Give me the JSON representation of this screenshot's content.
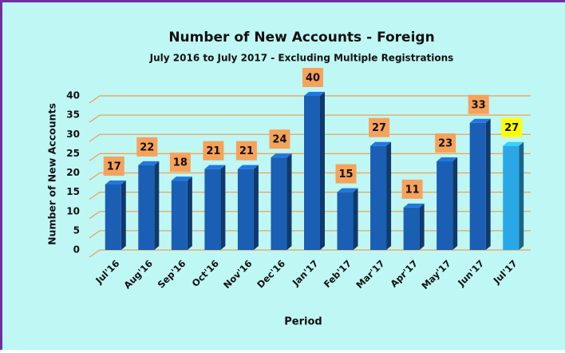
{
  "chart_data": {
    "type": "bar",
    "title": "Number of New Accounts - Foreign",
    "subtitle": "July 2016 to July 2017 - Excluding Multiple Registrations",
    "x_label": "Period",
    "y_label": "Number of New Accounts",
    "categories": [
      "Jul'16",
      "Aug'16",
      "Sep'16",
      "Oct'16",
      "Nov'16",
      "Dec'16",
      "Jan'17",
      "Feb'17",
      "Mar'17",
      "Apr'17",
      "May'17",
      "Jun'17",
      "Jul'17"
    ],
    "values": [
      17,
      22,
      18,
      21,
      21,
      24,
      40,
      15,
      27,
      11,
      23,
      33,
      27
    ],
    "colors": [
      "#1a5fb4",
      "#1a5fb4",
      "#1a5fb4",
      "#1a5fb4",
      "#1a5fb4",
      "#1a5fb4",
      "#1a5fb4",
      "#1a5fb4",
      "#1a5fb4",
      "#1a5fb4",
      "#1a5fb4",
      "#1a5fb4",
      "#2aa8e6"
    ],
    "label_colors": [
      "#f7a25a",
      "#f7a25a",
      "#f7a25a",
      "#f7a25a",
      "#f7a25a",
      "#f7a25a",
      "#f7a25a",
      "#f7a25a",
      "#f7a25a",
      "#f7a25a",
      "#f7a25a",
      "#f7a25a",
      "#ffff00"
    ],
    "grid_color": "#f0a050",
    "ylim": [
      0,
      40
    ],
    "yticks": [
      0,
      5,
      10,
      15,
      20,
      25,
      30,
      35,
      40
    ],
    "grid": true
  }
}
